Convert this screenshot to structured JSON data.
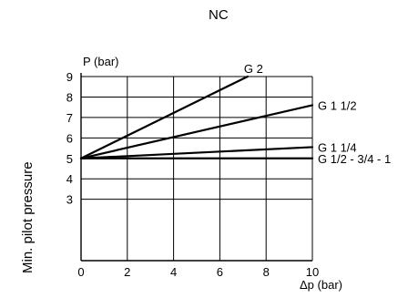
{
  "chart_data": {
    "type": "line",
    "title": "NC",
    "ylabel": "Min. pilot pressure",
    "y_axis_caption": "P (bar)",
    "x_axis_caption": "Δp (bar)",
    "xlim": [
      0,
      10
    ],
    "ylim": [
      0,
      9
    ],
    "x_ticks": [
      "0",
      "2",
      "4",
      "6",
      "8",
      "10"
    ],
    "y_ticks": [
      "3",
      "4",
      "5",
      "6",
      "7",
      "8",
      "9"
    ],
    "y_tick_values": [
      3,
      4,
      5,
      6,
      7,
      8,
      9
    ],
    "grid": true,
    "series": [
      {
        "name": "G 2",
        "x": [
          0,
          7.2
        ],
        "y": [
          5,
          9
        ]
      },
      {
        "name": "G 1 1/2",
        "x": [
          0,
          10
        ],
        "y": [
          5,
          7.6
        ]
      },
      {
        "name": "G 1 1/4",
        "x": [
          0,
          10
        ],
        "y": [
          5,
          5.55
        ]
      },
      {
        "name": "G 1/2 - 3/4 - 1",
        "x": [
          0,
          10
        ],
        "y": [
          5,
          5
        ]
      }
    ]
  }
}
